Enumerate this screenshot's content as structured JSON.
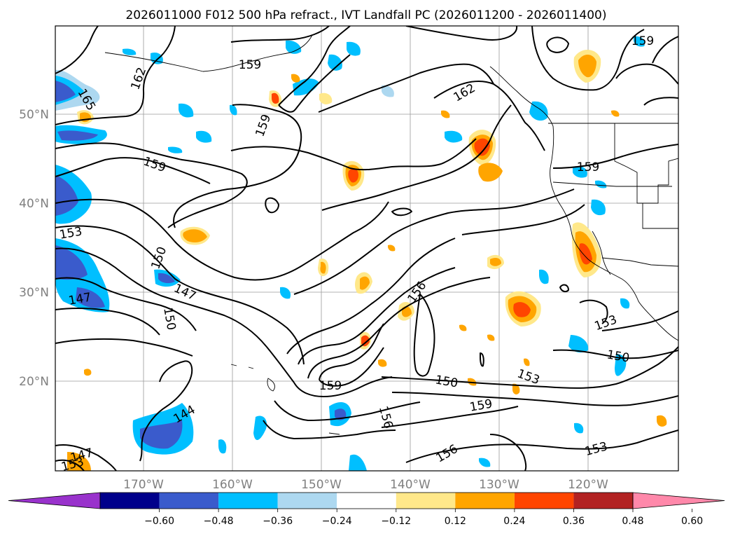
{
  "title": "2026011000 F012 500 hPa refract., IVT Landfall PC (2026011200 - 2026011400)",
  "lat_labels": [
    "50°N",
    "40°N",
    "30°N",
    "20°N"
  ],
  "lon_labels": [
    "170°W",
    "160°W",
    "150°W",
    "140°W",
    "130°W",
    "120°W"
  ],
  "colorbar": {
    "ticks": [
      "−0.60",
      "−0.48",
      "−0.36",
      "−0.24",
      "−0.12",
      "0.12",
      "0.24",
      "0.36",
      "0.48",
      "0.60"
    ],
    "colors": [
      "#9932cc",
      "#00008b",
      "#3a5bcc",
      "#00bfff",
      "#add8f0",
      "#ffffff",
      "#ffe88a",
      "#ffa500",
      "#ff4500",
      "#b22222",
      "#ff88aa"
    ]
  },
  "contour_labels": [
    {
      "text": "159",
      "value": 159
    },
    {
      "text": "162",
      "value": 162
    },
    {
      "text": "165",
      "value": 165
    },
    {
      "text": "159",
      "value": 159
    },
    {
      "text": "159",
      "value": 159
    },
    {
      "text": "162",
      "value": 162
    },
    {
      "text": "159",
      "value": 159
    },
    {
      "text": "159",
      "value": 159
    },
    {
      "text": "153",
      "value": 153
    },
    {
      "text": "150",
      "value": 150
    },
    {
      "text": "147",
      "value": 147
    },
    {
      "text": "147",
      "value": 147
    },
    {
      "text": "150",
      "value": 150
    },
    {
      "text": "156",
      "value": 156
    },
    {
      "text": "159",
      "value": 159
    },
    {
      "text": "150",
      "value": 150
    },
    {
      "text": "153",
      "value": 153
    },
    {
      "text": "159",
      "value": 159
    },
    {
      "text": "156",
      "value": 156
    },
    {
      "text": "144",
      "value": 144
    },
    {
      "text": "147",
      "value": 147
    },
    {
      "text": "153",
      "value": 153
    },
    {
      "text": "156",
      "value": 156
    },
    {
      "text": "153",
      "value": 153
    },
    {
      "text": "153",
      "value": 153
    },
    {
      "text": "150",
      "value": 150
    }
  ]
}
